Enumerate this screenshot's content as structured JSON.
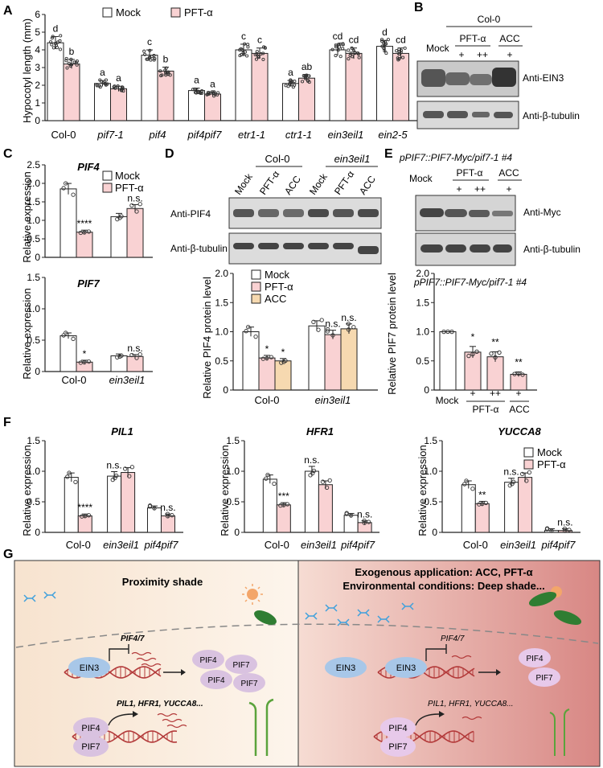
{
  "panel_letters": {
    "a": "A",
    "b": "B",
    "c": "C",
    "d": "D",
    "e": "E",
    "f": "F",
    "g": "G"
  },
  "legend": {
    "mock": "Mock",
    "pft": "PFT-α",
    "acc": "ACC"
  },
  "colors": {
    "mock": "#ffffff",
    "pft": "#f9d2d3",
    "acc": "#f6d9b0",
    "dot": "#333333",
    "bg_left": "#fbeee0",
    "bg_right": "#d88a86"
  },
  "panel_a": {
    "ylabel": "Hypocotyl length (mm)",
    "yticks": [
      "0",
      "1",
      "2",
      "3",
      "4",
      "5",
      "6"
    ],
    "genotypes": [
      "Col-0",
      "pif7-1",
      "pif4",
      "pif4pif7",
      "etr1-1",
      "ctr1-1",
      "ein3eil1",
      "ein2-5"
    ]
  },
  "panel_b": {
    "header": "Col-0",
    "mock": "Mock",
    "pft": "PFT-α",
    "acc": "ACC",
    "doses": [
      "+",
      "++",
      "+"
    ],
    "blot1": "Anti-EIN3",
    "blot2": "Anti-β-tubulin"
  },
  "panel_c": {
    "title1": "PIF4",
    "title2": "PIF7",
    "ylabel": "Relative expression",
    "yticks1": [
      "0",
      "0.5",
      "1.0",
      "1.5",
      "2.0",
      "2.5"
    ],
    "yticks2": [
      "0",
      "0.5",
      "1.0",
      "1.5"
    ],
    "groups": [
      "Col-0",
      "ein3eil1"
    ],
    "sig1": [
      "****",
      "n.s."
    ],
    "sig2": [
      "*",
      "n.s."
    ]
  },
  "panel_d": {
    "col0": "Col-0",
    "ein3eil1": "ein3eil1",
    "lanes": [
      "Mock",
      "PFT-α",
      "ACC",
      "Mock",
      "PFT-α",
      "ACC"
    ],
    "blot1": "Anti-PIF4",
    "blot2": "Anti-β-tubulin",
    "ylabel": "Relative PIF4 protein level",
    "yticks": [
      "0",
      "0.5",
      "1.0",
      "1.5",
      "2.0"
    ],
    "groups": [
      "Col-0",
      "ein3eil1"
    ],
    "sig": [
      "*",
      "*",
      "n.s.",
      "n.s."
    ]
  },
  "panel_e": {
    "title": "pPIF7::PIF7-Myc/pif7-1 #4",
    "mock": "Mock",
    "pft": "PFT-α",
    "acc": "ACC",
    "doses": [
      "+",
      "++",
      "+"
    ],
    "blot1": "Anti-Myc",
    "blot2": "Anti-β-tubulin",
    "ylabel": "Relative PIF7 protein level",
    "yticks": [
      "0",
      "0.5",
      "1.0",
      "1.5",
      "2.0"
    ],
    "sig": [
      "*",
      "**",
      "**"
    ]
  },
  "panel_f": {
    "titles": [
      "PIL1",
      "HFR1",
      "YUCCA8"
    ],
    "ylabel": "Relative expression",
    "groups": [
      "Col-0",
      "ein3eil1",
      "pif4pif7"
    ],
    "sig": [
      [
        "****",
        "n.s.",
        "n.s."
      ],
      [
        "***",
        "n.s.",
        "n.s."
      ],
      [
        "**",
        "n.s.",
        "n.s."
      ]
    ]
  },
  "panel_g": {
    "left_title": "Proximity shade",
    "right_title1": "Exogenous application: ACC, PFT-α",
    "right_title2": "Environmental conditions: Deep shade...",
    "pif47": "PIF4/7",
    "ein3": "EIN3",
    "pif4": "PIF4",
    "pif7": "PIF7",
    "genes": "PIL1, HFR1, YUCCA8..."
  },
  "chart_data": [
    {
      "type": "bar",
      "id": "A",
      "title": "",
      "ylabel": "Hypocotyl length (mm)",
      "ylim": [
        0,
        6
      ],
      "categories": [
        "Col-0",
        "pif7-1",
        "pif4",
        "pif4pif7",
        "etr1-1",
        "ctr1-1",
        "ein3eil1",
        "ein2-5"
      ],
      "series": [
        {
          "name": "Mock",
          "values": [
            4.4,
            2.1,
            3.7,
            1.7,
            4.0,
            2.1,
            4.0,
            4.2
          ]
        },
        {
          "name": "PFT-α",
          "values": [
            3.2,
            1.8,
            2.8,
            1.5,
            3.8,
            2.4,
            3.8,
            3.8
          ]
        }
      ],
      "letters": [
        [
          "d",
          "b"
        ],
        [
          "a",
          "a"
        ],
        [
          "c",
          "b"
        ],
        [
          "a",
          "a"
        ],
        [
          "c",
          "c"
        ],
        [
          "a",
          "ab"
        ],
        [
          "cd",
          "cd"
        ],
        [
          "d",
          "cd"
        ]
      ]
    },
    {
      "type": "bar",
      "id": "C-PIF4",
      "title": "PIF4",
      "ylabel": "Relative expression",
      "ylim": [
        0,
        2.5
      ],
      "categories": [
        "Col-0",
        "ein3eil1"
      ],
      "series": [
        {
          "name": "Mock",
          "values": [
            1.85,
            1.1
          ]
        },
        {
          "name": "PFT-α",
          "values": [
            0.68,
            1.32
          ]
        }
      ]
    },
    {
      "type": "bar",
      "id": "C-PIF7",
      "title": "PIF7",
      "ylabel": "Relative expression",
      "ylim": [
        0,
        1.5
      ],
      "categories": [
        "Col-0",
        "ein3eil1"
      ],
      "series": [
        {
          "name": "Mock",
          "values": [
            0.57,
            0.25
          ]
        },
        {
          "name": "PFT-α",
          "values": [
            0.15,
            0.24
          ]
        }
      ]
    },
    {
      "type": "bar",
      "id": "D",
      "ylabel": "Relative PIF4 protein level",
      "ylim": [
        0,
        2.0
      ],
      "categories": [
        "Col-0",
        "ein3eil1"
      ],
      "series": [
        {
          "name": "Mock",
          "values": [
            1.0,
            1.1
          ]
        },
        {
          "name": "PFT-α",
          "values": [
            0.55,
            0.95
          ]
        },
        {
          "name": "ACC",
          "values": [
            0.5,
            1.05
          ]
        }
      ]
    },
    {
      "type": "bar",
      "id": "E",
      "ylabel": "Relative PIF7 protein level",
      "ylim": [
        0,
        2.0
      ],
      "categories": [
        "Mock",
        "PFT-α +",
        "PFT-α ++",
        "ACC +"
      ],
      "values": [
        1.0,
        0.65,
        0.57,
        0.27
      ]
    },
    {
      "type": "bar",
      "id": "F-PIL1",
      "title": "PIL1",
      "ylabel": "Relative expression",
      "ylim": [
        0,
        1.5
      ],
      "categories": [
        "Col-0",
        "ein3eil1",
        "pif4pif7"
      ],
      "series": [
        {
          "name": "Mock",
          "values": [
            0.9,
            0.92,
            0.4
          ]
        },
        {
          "name": "PFT-α",
          "values": [
            0.27,
            0.98,
            0.27
          ]
        }
      ]
    },
    {
      "type": "bar",
      "id": "F-HFR1",
      "title": "HFR1",
      "ylabel": "Relative expression",
      "ylim": [
        0,
        1.5
      ],
      "categories": [
        "Col-0",
        "ein3eil1",
        "pif4pif7"
      ],
      "series": [
        {
          "name": "Mock",
          "values": [
            0.87,
            1.0,
            0.28
          ]
        },
        {
          "name": "PFT-α",
          "values": [
            0.45,
            0.78,
            0.16
          ]
        }
      ]
    },
    {
      "type": "bar",
      "id": "F-YUCCA8",
      "title": "YUCCA8",
      "ylabel": "Relative expression",
      "ylim": [
        0,
        1.5
      ],
      "categories": [
        "Col-0",
        "ein3eil1",
        "pif4pif7"
      ],
      "series": [
        {
          "name": "Mock",
          "values": [
            0.78,
            0.82,
            0.03
          ]
        },
        {
          "name": "PFT-α",
          "values": [
            0.47,
            0.9,
            0.03
          ]
        }
      ]
    }
  ]
}
